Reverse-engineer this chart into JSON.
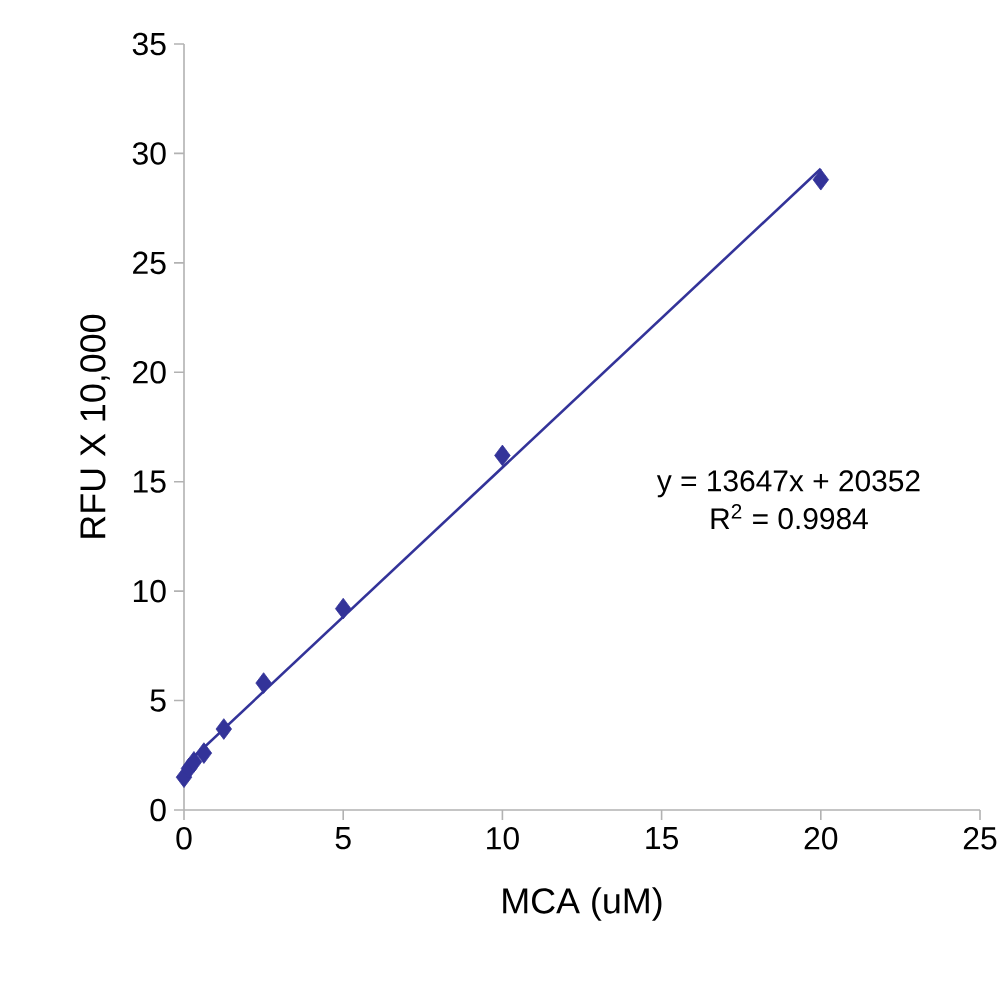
{
  "chart_data": {
    "type": "scatter",
    "xlabel": "MCA (uM)",
    "ylabel": "RFU X 10,000",
    "xlim": [
      0,
      25
    ],
    "xticks": [
      0,
      5,
      10,
      15,
      20,
      25
    ],
    "ylim": [
      0,
      35
    ],
    "yticks": [
      0,
      5,
      10,
      15,
      20,
      25,
      30,
      35
    ],
    "grid": false,
    "marker": "diamond",
    "series": [
      {
        "color": "#333399",
        "x": [
          0,
          0.156,
          0.3125,
          0.625,
          1.25,
          2.5,
          5,
          10,
          20
        ],
        "values": [
          1.5,
          1.9,
          2.2,
          2.6,
          3.7,
          5.8,
          9.2,
          16.2,
          28.8
        ]
      },
      {
        "type": "line",
        "color": "#333399",
        "marker": "none",
        "line_style": "solid",
        "x": [
          0,
          20
        ],
        "values": [
          2.0,
          29.3
        ]
      }
    ],
    "annotations": [
      "y = 13647x + 20352",
      "R$^{2}$ = 0.9984"
    ]
  }
}
